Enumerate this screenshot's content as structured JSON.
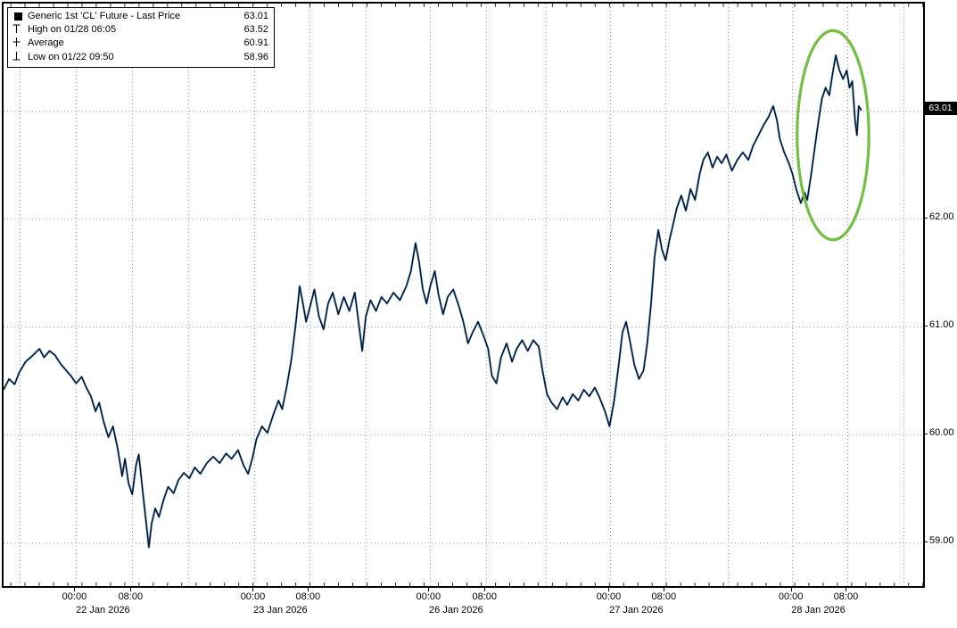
{
  "colors": {
    "line": "#000000",
    "line_accent": "#2467b0",
    "grid": "#9a9a9a",
    "annotation": "#72bf44",
    "badge_bg": "#000000",
    "badge_text": "#ffffff"
  },
  "legend": {
    "rows": [
      {
        "icon": "series-swatch",
        "label": "Generic 1st 'CL' Future - Last Price",
        "value": "63.01"
      },
      {
        "icon": "high-marker",
        "label": "High on 01/28 06:05",
        "value": "63.52"
      },
      {
        "icon": "average-marker",
        "label": "Average",
        "value": "60.91"
      },
      {
        "icon": "low-marker",
        "label": "Low on 01/22 09:50",
        "value": "58.96"
      }
    ]
  },
  "chart_data": {
    "type": "line",
    "title": "Generic 1st 'CL' Future - Last Price",
    "last_price": 63.01,
    "last_price_label": "63.01",
    "high": {
      "label": "High on 01/28 06:05",
      "value": 63.52
    },
    "average": 60.91,
    "low": {
      "label": "Low on 01/22 09:50",
      "value": 58.96
    },
    "ylim": [
      58.6,
      64.0
    ],
    "grid": true,
    "legend_position": "top-left",
    "y_ticks": [
      {
        "price": 59.0,
        "label": "59.00"
      },
      {
        "price": 60.0,
        "label": "60.00"
      },
      {
        "price": 61.0,
        "label": "61.00"
      },
      {
        "price": 62.0,
        "label": "62.00"
      },
      {
        "price": 63.0,
        "label": "63.00"
      }
    ],
    "x_ticks": [
      {
        "pos": 0.079,
        "label": "00:00"
      },
      {
        "pos": 0.14,
        "label": "08:00"
      },
      {
        "pos": 0.273,
        "label": "00:00"
      },
      {
        "pos": 0.333,
        "label": "08:00"
      },
      {
        "pos": 0.464,
        "label": "00:00"
      },
      {
        "pos": 0.525,
        "label": "08:00"
      },
      {
        "pos": 0.66,
        "label": "00:00"
      },
      {
        "pos": 0.72,
        "label": "08:00"
      },
      {
        "pos": 0.858,
        "label": "00:00"
      },
      {
        "pos": 0.918,
        "label": "08:00"
      }
    ],
    "x_minor_grid": [
      0.018,
      0.201,
      0.394,
      0.59,
      0.788,
      0.979
    ],
    "day_labels": [
      {
        "pos": 0.11,
        "label": "22 Jan 2026"
      },
      {
        "pos": 0.303,
        "label": "23 Jan 2026"
      },
      {
        "pos": 0.494,
        "label": "26 Jan 2026"
      },
      {
        "pos": 0.69,
        "label": "27 Jan 2026"
      },
      {
        "pos": 0.888,
        "label": "28 Jan 2026"
      }
    ],
    "annotation_ellipse": {
      "cx": 0.902,
      "cy_price": 62.78,
      "rx": 0.039,
      "ry_price": 0.97,
      "color": "#72bf44"
    },
    "series": [
      {
        "name": "Generic 1st 'CL' Future - Last Price",
        "color": "#000000",
        "accent": "#2467b0",
        "points": [
          [
            0.0,
            60.42
          ],
          [
            0.006,
            60.52
          ],
          [
            0.012,
            60.47
          ],
          [
            0.017,
            60.58
          ],
          [
            0.024,
            60.68
          ],
          [
            0.032,
            60.74
          ],
          [
            0.039,
            60.8
          ],
          [
            0.044,
            60.72
          ],
          [
            0.05,
            60.78
          ],
          [
            0.056,
            60.74
          ],
          [
            0.062,
            60.66
          ],
          [
            0.068,
            60.6
          ],
          [
            0.073,
            60.55
          ],
          [
            0.079,
            60.48
          ],
          [
            0.085,
            60.54
          ],
          [
            0.09,
            60.44
          ],
          [
            0.095,
            60.36
          ],
          [
            0.1,
            60.22
          ],
          [
            0.104,
            60.3
          ],
          [
            0.109,
            60.12
          ],
          [
            0.114,
            59.98
          ],
          [
            0.119,
            60.08
          ],
          [
            0.124,
            59.88
          ],
          [
            0.129,
            59.62
          ],
          [
            0.132,
            59.78
          ],
          [
            0.136,
            59.55
          ],
          [
            0.14,
            59.45
          ],
          [
            0.144,
            59.72
          ],
          [
            0.147,
            59.82
          ],
          [
            0.15,
            59.58
          ],
          [
            0.153,
            59.35
          ],
          [
            0.156,
            59.12
          ],
          [
            0.158,
            58.96
          ],
          [
            0.161,
            59.18
          ],
          [
            0.165,
            59.32
          ],
          [
            0.169,
            59.24
          ],
          [
            0.174,
            59.4
          ],
          [
            0.179,
            59.52
          ],
          [
            0.185,
            59.46
          ],
          [
            0.19,
            59.58
          ],
          [
            0.196,
            59.65
          ],
          [
            0.202,
            59.6
          ],
          [
            0.208,
            59.7
          ],
          [
            0.214,
            59.64
          ],
          [
            0.221,
            59.74
          ],
          [
            0.228,
            59.8
          ],
          [
            0.235,
            59.74
          ],
          [
            0.242,
            59.83
          ],
          [
            0.248,
            59.78
          ],
          [
            0.255,
            59.86
          ],
          [
            0.261,
            59.72
          ],
          [
            0.266,
            59.64
          ],
          [
            0.271,
            59.8
          ],
          [
            0.275,
            59.96
          ],
          [
            0.281,
            60.08
          ],
          [
            0.287,
            60.02
          ],
          [
            0.293,
            60.18
          ],
          [
            0.299,
            60.32
          ],
          [
            0.303,
            60.24
          ],
          [
            0.308,
            60.45
          ],
          [
            0.313,
            60.7
          ],
          [
            0.318,
            61.05
          ],
          [
            0.322,
            61.38
          ],
          [
            0.326,
            61.2
          ],
          [
            0.329,
            61.05
          ],
          [
            0.333,
            61.18
          ],
          [
            0.338,
            61.35
          ],
          [
            0.343,
            61.1
          ],
          [
            0.348,
            60.98
          ],
          [
            0.353,
            61.22
          ],
          [
            0.358,
            61.32
          ],
          [
            0.364,
            61.12
          ],
          [
            0.37,
            61.28
          ],
          [
            0.376,
            61.15
          ],
          [
            0.382,
            61.32
          ],
          [
            0.386,
            61.05
          ],
          [
            0.39,
            60.78
          ],
          [
            0.394,
            61.1
          ],
          [
            0.399,
            61.25
          ],
          [
            0.405,
            61.15
          ],
          [
            0.411,
            61.28
          ],
          [
            0.417,
            61.22
          ],
          [
            0.424,
            61.32
          ],
          [
            0.431,
            61.25
          ],
          [
            0.438,
            61.38
          ],
          [
            0.443,
            61.52
          ],
          [
            0.448,
            61.78
          ],
          [
            0.452,
            61.6
          ],
          [
            0.456,
            61.35
          ],
          [
            0.46,
            61.22
          ],
          [
            0.464,
            61.38
          ],
          [
            0.469,
            61.52
          ],
          [
            0.473,
            61.3
          ],
          [
            0.478,
            61.12
          ],
          [
            0.483,
            61.28
          ],
          [
            0.489,
            61.35
          ],
          [
            0.495,
            61.2
          ],
          [
            0.5,
            61.05
          ],
          [
            0.505,
            60.85
          ],
          [
            0.51,
            60.95
          ],
          [
            0.516,
            61.05
          ],
          [
            0.522,
            60.92
          ],
          [
            0.527,
            60.8
          ],
          [
            0.531,
            60.55
          ],
          [
            0.536,
            60.48
          ],
          [
            0.541,
            60.72
          ],
          [
            0.547,
            60.85
          ],
          [
            0.553,
            60.68
          ],
          [
            0.558,
            60.8
          ],
          [
            0.564,
            60.88
          ],
          [
            0.57,
            60.78
          ],
          [
            0.576,
            60.88
          ],
          [
            0.582,
            60.82
          ],
          [
            0.586,
            60.6
          ],
          [
            0.591,
            60.38
          ],
          [
            0.596,
            60.3
          ],
          [
            0.602,
            60.24
          ],
          [
            0.608,
            60.35
          ],
          [
            0.613,
            60.28
          ],
          [
            0.619,
            60.38
          ],
          [
            0.625,
            60.32
          ],
          [
            0.631,
            60.42
          ],
          [
            0.637,
            60.36
          ],
          [
            0.643,
            60.44
          ],
          [
            0.648,
            60.35
          ],
          [
            0.654,
            60.22
          ],
          [
            0.659,
            60.08
          ],
          [
            0.664,
            60.32
          ],
          [
            0.669,
            60.65
          ],
          [
            0.673,
            60.95
          ],
          [
            0.677,
            61.05
          ],
          [
            0.681,
            60.88
          ],
          [
            0.686,
            60.65
          ],
          [
            0.691,
            60.52
          ],
          [
            0.696,
            60.6
          ],
          [
            0.7,
            60.85
          ],
          [
            0.704,
            61.2
          ],
          [
            0.708,
            61.65
          ],
          [
            0.712,
            61.9
          ],
          [
            0.716,
            61.72
          ],
          [
            0.72,
            61.62
          ],
          [
            0.724,
            61.8
          ],
          [
            0.728,
            61.95
          ],
          [
            0.732,
            62.1
          ],
          [
            0.737,
            62.22
          ],
          [
            0.742,
            62.08
          ],
          [
            0.747,
            62.28
          ],
          [
            0.752,
            62.18
          ],
          [
            0.757,
            62.42
          ],
          [
            0.761,
            62.55
          ],
          [
            0.766,
            62.62
          ],
          [
            0.771,
            62.48
          ],
          [
            0.776,
            62.58
          ],
          [
            0.781,
            62.52
          ],
          [
            0.786,
            62.6
          ],
          [
            0.792,
            62.45
          ],
          [
            0.798,
            62.55
          ],
          [
            0.804,
            62.62
          ],
          [
            0.81,
            62.55
          ],
          [
            0.815,
            62.68
          ],
          [
            0.821,
            62.78
          ],
          [
            0.827,
            62.88
          ],
          [
            0.832,
            62.95
          ],
          [
            0.837,
            63.05
          ],
          [
            0.841,
            62.92
          ],
          [
            0.844,
            62.75
          ],
          [
            0.849,
            62.62
          ],
          [
            0.854,
            62.52
          ],
          [
            0.858,
            62.42
          ],
          [
            0.862,
            62.28
          ],
          [
            0.867,
            62.15
          ],
          [
            0.871,
            62.25
          ],
          [
            0.874,
            62.18
          ],
          [
            0.878,
            62.4
          ],
          [
            0.882,
            62.65
          ],
          [
            0.886,
            62.9
          ],
          [
            0.89,
            63.12
          ],
          [
            0.894,
            63.22
          ],
          [
            0.898,
            63.15
          ],
          [
            0.901,
            63.32
          ],
          [
            0.905,
            63.52
          ],
          [
            0.909,
            63.38
          ],
          [
            0.913,
            63.3
          ],
          [
            0.917,
            63.38
          ],
          [
            0.92,
            63.22
          ],
          [
            0.923,
            63.28
          ],
          [
            0.926,
            62.92
          ],
          [
            0.928,
            62.78
          ],
          [
            0.93,
            63.05
          ],
          [
            0.933,
            63.01
          ]
        ]
      }
    ]
  }
}
